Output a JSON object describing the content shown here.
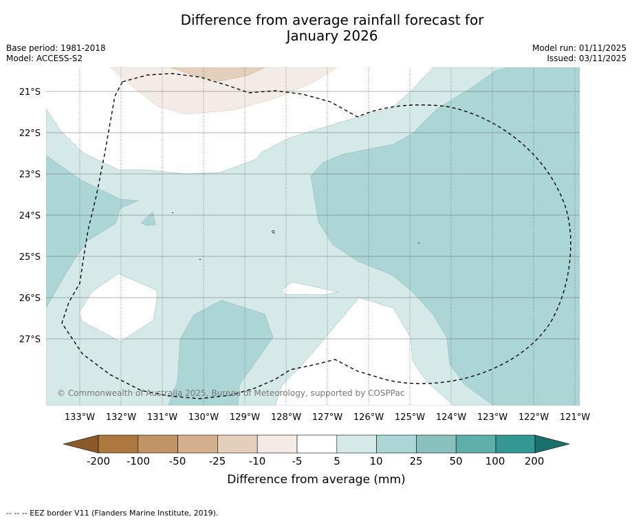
{
  "title_line1": "Difference from average rainfall forecast for",
  "title_line2": "January 2026",
  "base_period": "Base period: 1981-2018",
  "model": "Model: ACCESS-S2",
  "model_run": "Model run: 01/11/2025",
  "issued": "Issued: 03/11/2025",
  "map": {
    "lat_labels": [
      "21°S",
      "22°S",
      "23°S",
      "24°S",
      "25°S",
      "26°S",
      "27°S"
    ],
    "lon_labels": [
      "133°W",
      "132°W",
      "131°W",
      "130°W",
      "129°W",
      "128°W",
      "127°W",
      "126°W",
      "125°W",
      "124°W",
      "123°W",
      "122°W",
      "121°W"
    ],
    "copyright": "© Commonwealth of Australia 2025, Bureau of Meteorology, supported by COSPPac"
  },
  "colorbar": {
    "ticks": [
      "-200",
      "-100",
      "-50",
      "-25",
      "-10",
      "-5",
      "5",
      "10",
      "25",
      "50",
      "100",
      "200"
    ],
    "label": "Difference from average (mm)",
    "colors": {
      "below_200": "#8c5a2a",
      "m200_m100": "#ad773f",
      "m100_m50": "#c29464",
      "m50_m25": "#d4b08f",
      "m25_m10": "#e4cfbc",
      "m10_m5": "#f3ece6",
      "m5_p5": "#ffffff",
      "p5_p10": "#d5e9e8",
      "p10_p25": "#acd6d5",
      "p25_p50": "#89c1bf",
      "p50_p100": "#5eaeac",
      "p100_p200": "#339893",
      "above_200": "#1a706c"
    }
  },
  "legend_note": "--  --  -- EEZ border V11 (Flanders Marine Institute, 2019)."
}
